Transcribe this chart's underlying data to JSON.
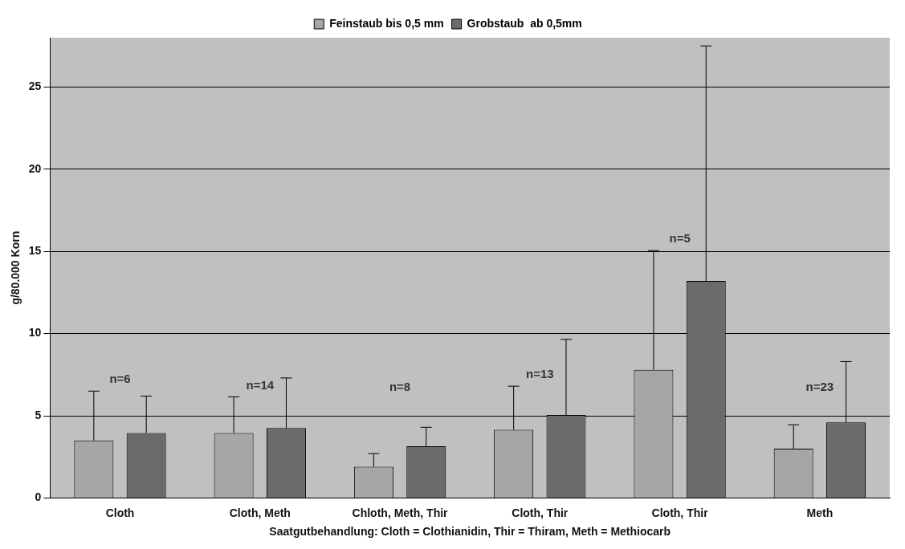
{
  "chart_data": {
    "type": "bar",
    "xlabel": "Saatgutbehandlung: Cloth = Clothianidin, Thir = Thiram, Meth = Methiocarb",
    "ylabel": "g/80.000 Korn",
    "categories": [
      "Cloth",
      "Cloth, Meth",
      "Chloth, Meth, Thir",
      "Cloth, Thir",
      "Cloth, Thir",
      "Meth"
    ],
    "series": [
      {
        "name": "Feinstaub bis 0,5 mm",
        "color": "#a6a6a6",
        "values": [
          3.5,
          3.95,
          1.9,
          4.15,
          7.8,
          3.0
        ],
        "errors": [
          [
            3.5,
            6.5
          ],
          [
            3.95,
            6.15
          ],
          [
            1.9,
            2.7
          ],
          [
            4.15,
            6.8
          ],
          [
            7.8,
            15.05
          ],
          [
            3.0,
            4.45
          ]
        ]
      },
      {
        "name": "Grobstaub  ab 0,5mm",
        "color": "#6b6b6e",
        "values": [
          3.95,
          4.25,
          3.15,
          5.05,
          13.2,
          4.6
        ],
        "errors": [
          [
            3.95,
            6.2
          ],
          [
            4.25,
            7.3
          ],
          [
            3.15,
            4.3
          ],
          [
            5.05,
            9.65
          ],
          [
            13.2,
            27.5
          ],
          [
            4.6,
            8.3
          ]
        ]
      }
    ],
    "annotations": [
      "n=6",
      "n=14",
      "n=8",
      "n=13",
      "n=5",
      "n=23"
    ],
    "ylim": [
      0,
      28
    ],
    "yticks": [
      0,
      5,
      10,
      15,
      20,
      25
    ],
    "grid": "y",
    "legend": "top"
  }
}
